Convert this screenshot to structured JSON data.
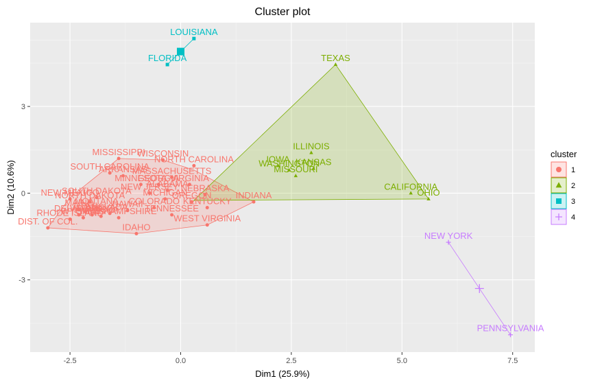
{
  "chart_data": {
    "type": "scatter",
    "title": "Cluster plot",
    "xlabel": "Dim1 (25.9%)",
    "ylabel": "Dim2 (10.6%)",
    "xlim": [
      -3.4,
      8.0
    ],
    "ylim": [
      -5.5,
      5.9
    ],
    "x_ticks": [
      -2.5,
      0.0,
      2.5,
      5.0,
      7.5
    ],
    "x_tick_labels": [
      "-2.5",
      "0.0",
      "2.5",
      "5.0",
      "7.5"
    ],
    "y_ticks": [
      -3,
      0,
      3
    ],
    "y_tick_labels": [
      "-3",
      "0",
      "3"
    ],
    "grid": true,
    "legend": {
      "title": "cluster",
      "position": "right",
      "entries": [
        "1",
        "2",
        "3",
        "4"
      ]
    },
    "clusters": [
      {
        "name": "1",
        "color": "#f8766d",
        "marker": "circle",
        "hull": [
          [
            -3.0,
            -1.2
          ],
          [
            -1.0,
            -1.4
          ],
          [
            0.6,
            -1.1
          ],
          [
            1.65,
            -0.3
          ],
          [
            0.3,
            0.8
          ],
          [
            -0.4,
            1.15
          ],
          [
            -1.4,
            1.2
          ],
          [
            -2.5,
            -0.15
          ]
        ],
        "points": [
          {
            "label": "MISSISSIPPI",
            "x": -1.4,
            "y": 1.2
          },
          {
            "label": "WISCONSIN",
            "x": -0.4,
            "y": 1.15
          },
          {
            "label": "NORTH CAROLINA",
            "x": 0.3,
            "y": 0.95
          },
          {
            "label": "SOUTH CAROLINA",
            "x": -1.6,
            "y": 0.7
          },
          {
            "label": "ARKANSAS",
            "x": -1.3,
            "y": 0.6
          },
          {
            "label": "MASSACHUSETTS",
            "x": -0.2,
            "y": 0.55
          },
          {
            "label": "MINNESOTA",
            "x": -0.9,
            "y": 0.3
          },
          {
            "label": "GEORGIA",
            "x": -0.5,
            "y": 0.3
          },
          {
            "label": "VIRGINIA",
            "x": 0.2,
            "y": 0.3
          },
          {
            "label": "ALABAMA",
            "x": -0.3,
            "y": 0.1
          },
          {
            "label": "NEW JERSEY",
            "x": -0.7,
            "y": 0.0
          },
          {
            "label": "MICHIGAN",
            "x": -0.35,
            "y": -0.2
          },
          {
            "label": "NEBRASKA",
            "x": 0.55,
            "y": -0.05
          },
          {
            "label": "OREGON",
            "x": 0.25,
            "y": -0.3
          },
          {
            "label": "INDIANA",
            "x": 1.65,
            "y": -0.3
          },
          {
            "label": "KENTUCKY",
            "x": 0.6,
            "y": -0.5
          },
          {
            "label": "COLORADO",
            "x": -0.6,
            "y": -0.5
          },
          {
            "label": "TENNESSEE",
            "x": -0.2,
            "y": -0.75
          },
          {
            "label": "WEST VIRGINIA",
            "x": 0.6,
            "y": -1.1
          },
          {
            "label": "IDAHO",
            "x": -1.0,
            "y": -1.4
          },
          {
            "label": "NEW MEXICO",
            "x": -2.5,
            "y": -0.2
          },
          {
            "label": "SOUTH DAKOTA",
            "x": -1.9,
            "y": -0.15
          },
          {
            "label": "NORTH DAKOTA",
            "x": -2.05,
            "y": -0.3
          },
          {
            "label": "MONTANA",
            "x": -1.9,
            "y": -0.5
          },
          {
            "label": "MAINE",
            "x": -2.3,
            "y": -0.55
          },
          {
            "label": "UTAH",
            "x": -2.15,
            "y": -0.65
          },
          {
            "label": "NEVADA",
            "x": -1.6,
            "y": -0.7
          },
          {
            "label": "DELAWARE",
            "x": -2.3,
            "y": -0.75
          },
          {
            "label": "VERMONT",
            "x": -2.0,
            "y": -0.75
          },
          {
            "label": "WYOMING",
            "x": -2.2,
            "y": -0.85
          },
          {
            "label": "ALASKA",
            "x": -1.8,
            "y": -0.8
          },
          {
            "label": "NEW HAMPSHIRE",
            "x": -1.4,
            "y": -0.85
          },
          {
            "label": "HAWAII",
            "x": -1.2,
            "y": -0.6
          },
          {
            "label": "RHODE ISLAND",
            "x": -2.5,
            "y": -0.9
          },
          {
            "label": "DIST. OF COL.",
            "x": -3.0,
            "y": -1.2
          }
        ]
      },
      {
        "name": "2",
        "color": "#7cae00",
        "marker": "triangle",
        "hull": [
          [
            3.5,
            4.45
          ],
          [
            5.6,
            -0.2
          ],
          [
            0.3,
            -0.25
          ]
        ],
        "points": [
          {
            "label": "TEXAS",
            "x": 3.5,
            "y": 4.45
          },
          {
            "label": "ILLINOIS",
            "x": 2.95,
            "y": 1.4
          },
          {
            "label": "IOWA",
            "x": 2.2,
            "y": 0.95
          },
          {
            "label": "WASHINGTON",
            "x": 2.45,
            "y": 0.8
          },
          {
            "label": "MISSOURI",
            "x": 2.6,
            "y": 0.6
          },
          {
            "label": "KANSAS",
            "x": 3.0,
            "y": 0.85
          },
          {
            "label": "CALIFORNIA",
            "x": 5.2,
            "y": 0.0
          },
          {
            "label": "OHIO",
            "x": 5.6,
            "y": -0.2
          }
        ]
      },
      {
        "name": "3",
        "color": "#00bfc4",
        "marker": "square",
        "center": [
          0.0,
          4.9
        ],
        "points": [
          {
            "label": "LOUISIANA",
            "x": 0.3,
            "y": 5.35
          },
          {
            "label": "FLORIDA",
            "x": -0.3,
            "y": 4.45
          }
        ]
      },
      {
        "name": "4",
        "color": "#c77cff",
        "marker": "plus",
        "center": [
          6.75,
          -3.3
        ],
        "points": [
          {
            "label": "NEW YORK",
            "x": 6.05,
            "y": -1.7
          },
          {
            "label": "PENNSYLVANIA",
            "x": 7.45,
            "y": -4.9
          }
        ]
      }
    ]
  }
}
